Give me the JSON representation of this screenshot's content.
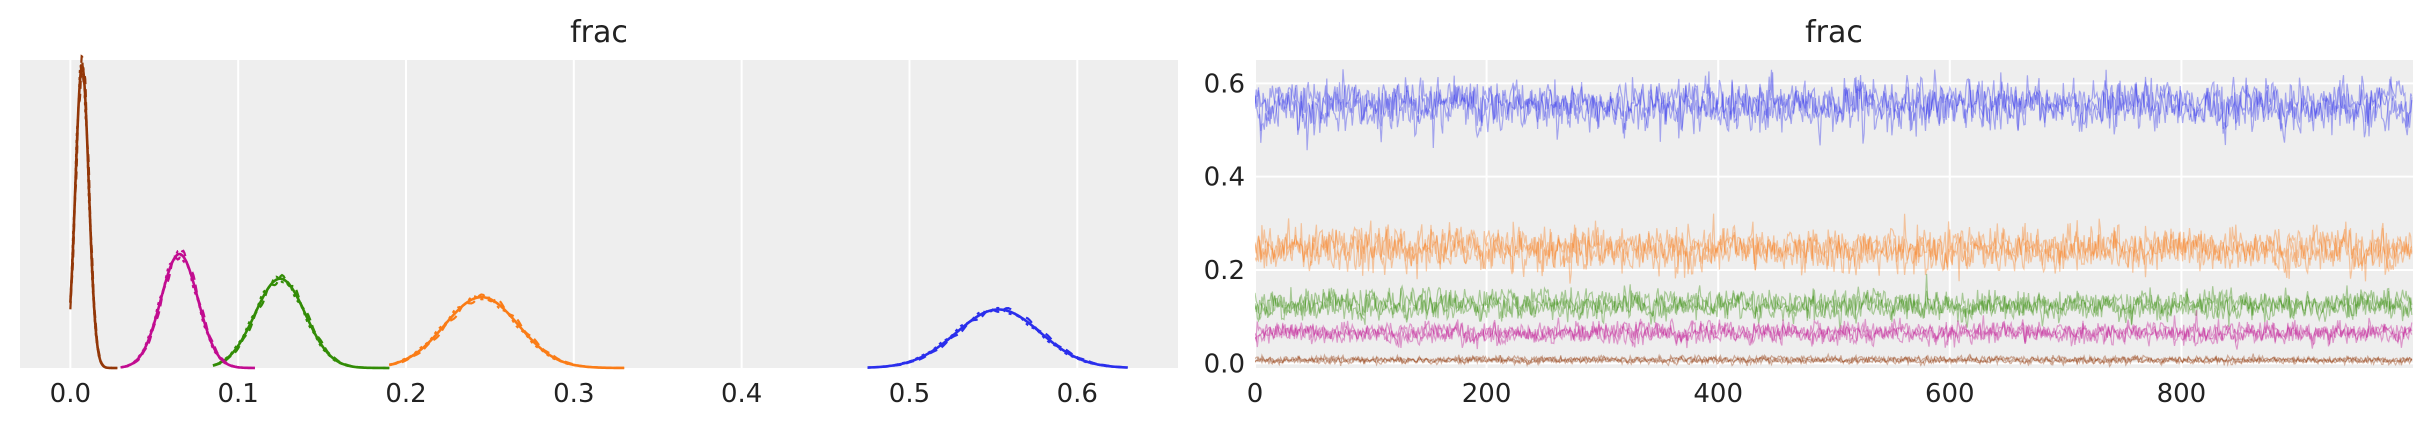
{
  "chart_data": [
    {
      "type": "line",
      "subtype": "kde",
      "title": "frac",
      "xlabel": "",
      "ylabel": "",
      "xlim": [
        -0.03,
        0.66
      ],
      "ylim": [
        0,
        1.0
      ],
      "x_ticks": [
        0.0,
        0.1,
        0.2,
        0.3,
        0.4,
        0.5,
        0.6
      ],
      "x_tick_labels": [
        "0.0",
        "0.1",
        "0.2",
        "0.3",
        "0.4",
        "0.5",
        "0.6"
      ],
      "y_ticks_visible": false,
      "grid": true,
      "series": [
        {
          "color": "#2a2eec",
          "mean": 0.553,
          "sd": 0.025,
          "x_min": 0.475,
          "x_max": 0.63,
          "peak": 0.19
        },
        {
          "color": "#fa7c17",
          "mean": 0.245,
          "sd": 0.022,
          "x_min": 0.19,
          "x_max": 0.33,
          "peak": 0.23
        },
        {
          "color": "#328c06",
          "mean": 0.125,
          "sd": 0.015,
          "x_min": 0.085,
          "x_max": 0.19,
          "peak": 0.29
        },
        {
          "color": "#c10c90",
          "mean": 0.065,
          "sd": 0.011,
          "x_min": 0.03,
          "x_max": 0.11,
          "peak": 0.37
        },
        {
          "color": "#933708",
          "mean": 0.007,
          "sd": 0.004,
          "x_min": 0.0,
          "x_max": 0.028,
          "peak": 0.98
        }
      ]
    },
    {
      "type": "line",
      "subtype": "trace",
      "title": "frac",
      "xlabel": "",
      "ylabel": "",
      "xlim": [
        0,
        1000
      ],
      "ylim": [
        -0.01,
        0.65
      ],
      "x_ticks": [
        0,
        200,
        400,
        600,
        800
      ],
      "x_tick_labels": [
        "0",
        "200",
        "400",
        "600",
        "800"
      ],
      "y_ticks": [
        0.0,
        0.2,
        0.4,
        0.6
      ],
      "y_tick_labels": [
        "0.0",
        "0.2",
        "0.4",
        "0.6"
      ],
      "grid": true,
      "draws": 1000,
      "series": [
        {
          "color": "#2a2eec",
          "mean": 0.553,
          "sd": 0.025
        },
        {
          "color": "#fa7c17",
          "mean": 0.245,
          "sd": 0.022
        },
        {
          "color": "#328c06",
          "mean": 0.125,
          "sd": 0.015
        },
        {
          "color": "#c10c90",
          "mean": 0.065,
          "sd": 0.011
        },
        {
          "color": "#933708",
          "mean": 0.007,
          "sd": 0.004
        }
      ]
    }
  ]
}
